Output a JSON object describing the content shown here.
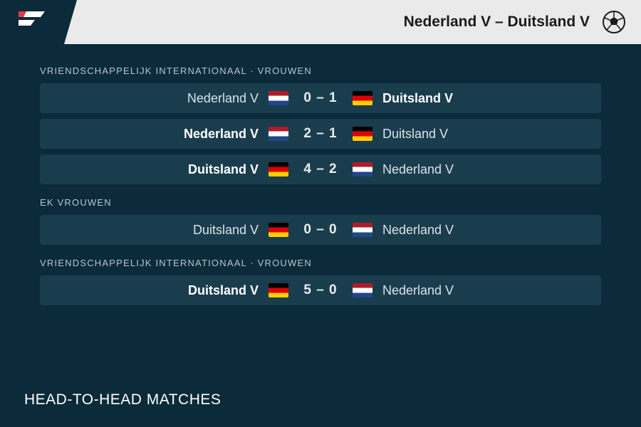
{
  "colors": {
    "card_bg": "#0b2a3a",
    "header_bg": "#eaeaea",
    "row_bg": "#1a3d4d",
    "label_color": "#b9c6cd",
    "team_color": "#d8e2e7",
    "winner_color": "#ffffff"
  },
  "teams": {
    "ned": {
      "name": "Nederland V",
      "flag": "ned"
    },
    "ger": {
      "name": "Duitsland V",
      "flag": "ger"
    }
  },
  "header": {
    "title": "Nederland V – Duitsland V"
  },
  "footer": {
    "label": "HEAD-TO-HEAD MATCHES"
  },
  "sections": [
    {
      "label": "VRIENDSCHAPPELIJK INTERNATIONAAL · VROUWEN",
      "matches": [
        {
          "home": "ned",
          "away": "ger",
          "home_score": 0,
          "away_score": 1,
          "winner": "away"
        },
        {
          "home": "ned",
          "away": "ger",
          "home_score": 2,
          "away_score": 1,
          "winner": "home"
        },
        {
          "home": "ger",
          "away": "ned",
          "home_score": 4,
          "away_score": 2,
          "winner": "home"
        }
      ]
    },
    {
      "label": "EK VROUWEN",
      "matches": [
        {
          "home": "ger",
          "away": "ned",
          "home_score": 0,
          "away_score": 0,
          "winner": "none"
        }
      ]
    },
    {
      "label": "VRIENDSCHAPPELIJK INTERNATIONAAL · VROUWEN",
      "matches": [
        {
          "home": "ger",
          "away": "ned",
          "home_score": 5,
          "away_score": 0,
          "winner": "home"
        }
      ]
    }
  ]
}
